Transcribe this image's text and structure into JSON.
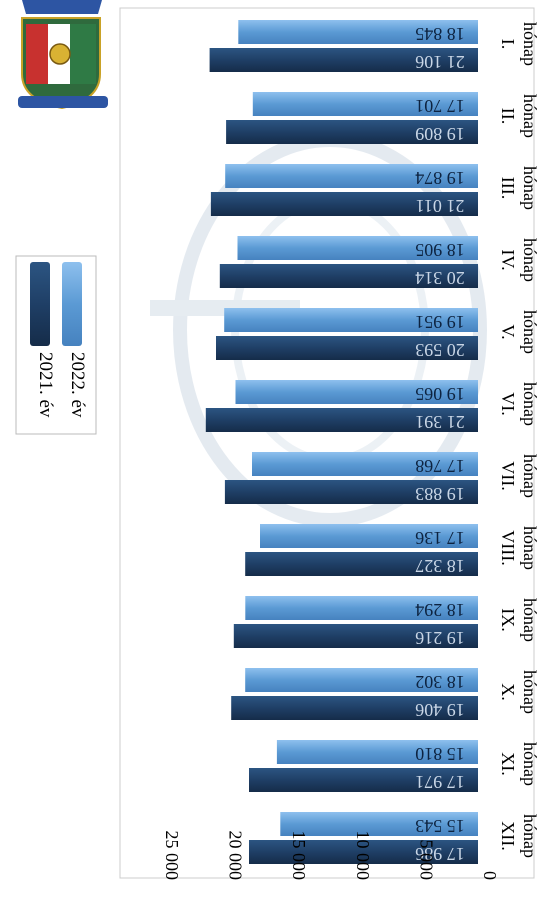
{
  "chart_data": {
    "type": "bar",
    "orientation": "vertical (image rotated 90° clockwise)",
    "categories": [
      [
        "I.",
        "hónap"
      ],
      [
        "II.",
        "hónap"
      ],
      [
        "III.",
        "hónap"
      ],
      [
        "IV.",
        "hónap"
      ],
      [
        "V.",
        "hónap"
      ],
      [
        "VI.",
        "hónap"
      ],
      [
        "VII.",
        "hónap"
      ],
      [
        "VIII.",
        "hónap"
      ],
      [
        "IX.",
        "hónap"
      ],
      [
        "X.",
        "hónap"
      ],
      [
        "XI.",
        "hónap"
      ],
      [
        "XII.",
        "hónap"
      ]
    ],
    "series": [
      {
        "name": "2021. év",
        "color": "#1f3f66",
        "values": [
          21100,
          19800,
          21000,
          20300,
          20600,
          21400,
          19900,
          18300,
          19200,
          19400,
          18000,
          18000
        ],
        "labels": [
          "21 106",
          "19 809",
          "21 011",
          "20 314",
          "20 593",
          "21 391",
          "19 883",
          "18 327",
          "19 216",
          "19 406",
          "17 971",
          "17 986"
        ]
      },
      {
        "name": "2022. év",
        "color": "#5b9ad4",
        "values": [
          18845,
          17701,
          19874,
          18905,
          19951,
          19065,
          17768,
          17136,
          18294,
          18302,
          15810,
          15543
        ],
        "labels": [
          "18 845",
          "17 701",
          "19 874",
          "18 905",
          "19 951",
          "19 065",
          "17 768",
          "17 136",
          "18 294",
          "18 302",
          "15 810",
          "15 543"
        ]
      }
    ],
    "yticks": [
      "0",
      "5 000",
      "10 000",
      "15 000",
      "20 000",
      "25 000"
    ],
    "ylim": [
      0,
      25000
    ],
    "legend": "top-right",
    "grid": false
  }
}
